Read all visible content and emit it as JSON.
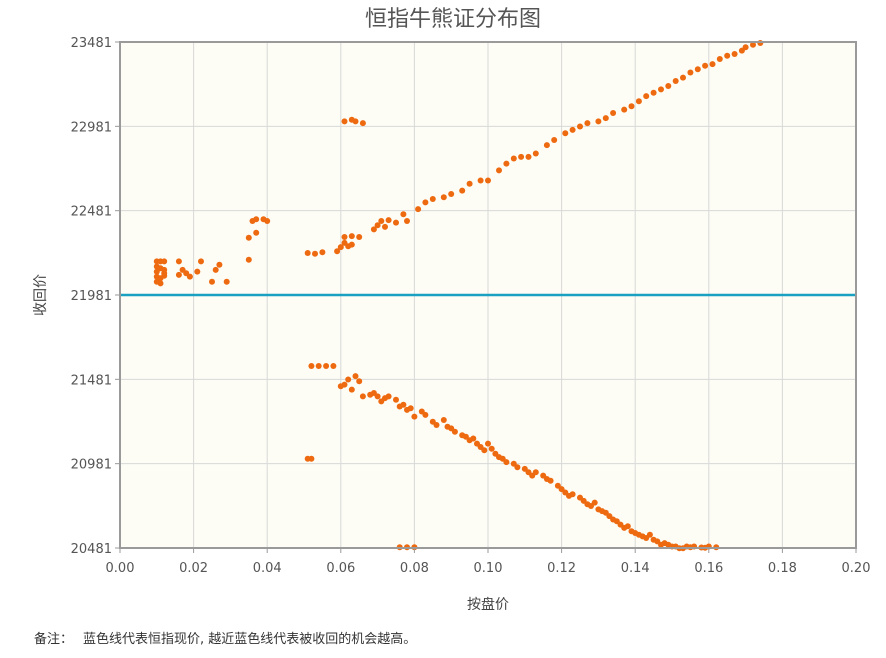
{
  "note": {
    "label": "备注：",
    "text": "蓝色线代表恒指现价, 越近蓝色线代表被收回的机会越高。"
  },
  "chart_data": {
    "type": "scatter",
    "title": "恒指牛熊证分布图",
    "xlabel": "按盘价",
    "ylabel": "收回价",
    "xlim": [
      0,
      0.2
    ],
    "ylim": [
      20481,
      23481
    ],
    "x_ticks": [
      "0.00",
      "0.02",
      "0.04",
      "0.06",
      "0.08",
      "0.10",
      "0.12",
      "0.14",
      "0.16",
      "0.18",
      "0.20"
    ],
    "y_ticks": [
      "20481",
      "20981",
      "21481",
      "21981",
      "22481",
      "22981",
      "23481"
    ],
    "grid": true,
    "colors": {
      "points": "#ee6a10",
      "reference_line": "#1aa0c0",
      "plot_bg": "#fdfdf6",
      "grid": "#d8d8d8",
      "frame": "#9a9a9a"
    },
    "reference_line": {
      "y": 21981
    },
    "series": [
      {
        "values": [
          [
            0.01,
            22180
          ],
          [
            0.011,
            22180
          ],
          [
            0.012,
            22180
          ],
          [
            0.01,
            22150
          ],
          [
            0.011,
            22140
          ],
          [
            0.012,
            22130
          ],
          [
            0.01,
            22120
          ],
          [
            0.012,
            22110
          ],
          [
            0.01,
            22090
          ],
          [
            0.011,
            22080
          ],
          [
            0.012,
            22095
          ],
          [
            0.01,
            22060
          ],
          [
            0.011,
            22050
          ],
          [
            0.016,
            22180
          ],
          [
            0.017,
            22130
          ],
          [
            0.016,
            22100
          ],
          [
            0.018,
            22110
          ],
          [
            0.019,
            22090
          ],
          [
            0.021,
            22120
          ],
          [
            0.022,
            22180
          ],
          [
            0.025,
            22060
          ],
          [
            0.026,
            22130
          ],
          [
            0.027,
            22160
          ],
          [
            0.029,
            22060
          ],
          [
            0.035,
            22190
          ],
          [
            0.035,
            22320
          ],
          [
            0.037,
            22350
          ],
          [
            0.036,
            22420
          ],
          [
            0.037,
            22430
          ],
          [
            0.039,
            22430
          ],
          [
            0.04,
            22420
          ],
          [
            0.051,
            22230
          ],
          [
            0.053,
            22225
          ],
          [
            0.055,
            22235
          ],
          [
            0.059,
            22240
          ],
          [
            0.06,
            22265
          ],
          [
            0.061,
            22290
          ],
          [
            0.062,
            22270
          ],
          [
            0.063,
            22280
          ],
          [
            0.061,
            22325
          ],
          [
            0.063,
            22330
          ],
          [
            0.065,
            22325
          ],
          [
            0.061,
            23010
          ],
          [
            0.063,
            23020
          ],
          [
            0.064,
            23010
          ],
          [
            0.066,
            23000
          ],
          [
            0.069,
            22370
          ],
          [
            0.07,
            22395
          ],
          [
            0.071,
            22420
          ],
          [
            0.072,
            22385
          ],
          [
            0.073,
            22425
          ],
          [
            0.075,
            22410
          ],
          [
            0.077,
            22460
          ],
          [
            0.078,
            22420
          ],
          [
            0.081,
            22490
          ],
          [
            0.083,
            22530
          ],
          [
            0.085,
            22550
          ],
          [
            0.088,
            22560
          ],
          [
            0.09,
            22580
          ],
          [
            0.093,
            22600
          ],
          [
            0.095,
            22640
          ],
          [
            0.098,
            22660
          ],
          [
            0.1,
            22660
          ],
          [
            0.103,
            22720
          ],
          [
            0.105,
            22760
          ],
          [
            0.107,
            22790
          ],
          [
            0.109,
            22800
          ],
          [
            0.111,
            22800
          ],
          [
            0.113,
            22820
          ],
          [
            0.116,
            22870
          ],
          [
            0.118,
            22900
          ],
          [
            0.121,
            22940
          ],
          [
            0.123,
            22960
          ],
          [
            0.125,
            22980
          ],
          [
            0.127,
            23000
          ],
          [
            0.13,
            23010
          ],
          [
            0.132,
            23030
          ],
          [
            0.134,
            23060
          ],
          [
            0.137,
            23080
          ],
          [
            0.139,
            23100
          ],
          [
            0.141,
            23130
          ],
          [
            0.143,
            23160
          ],
          [
            0.145,
            23180
          ],
          [
            0.147,
            23200
          ],
          [
            0.149,
            23220
          ],
          [
            0.151,
            23250
          ],
          [
            0.153,
            23270
          ],
          [
            0.155,
            23300
          ],
          [
            0.157,
            23320
          ],
          [
            0.159,
            23340
          ],
          [
            0.161,
            23350
          ],
          [
            0.163,
            23380
          ],
          [
            0.165,
            23400
          ],
          [
            0.167,
            23410
          ],
          [
            0.169,
            23430
          ],
          [
            0.17,
            23450
          ],
          [
            0.172,
            23465
          ],
          [
            0.174,
            23475
          ],
          [
            0.052,
            21560
          ],
          [
            0.054,
            21560
          ],
          [
            0.056,
            21560
          ],
          [
            0.058,
            21560
          ],
          [
            0.06,
            21440
          ],
          [
            0.061,
            21450
          ],
          [
            0.062,
            21480
          ],
          [
            0.063,
            21420
          ],
          [
            0.064,
            21500
          ],
          [
            0.065,
            21470
          ],
          [
            0.066,
            21380
          ],
          [
            0.068,
            21390
          ],
          [
            0.069,
            21400
          ],
          [
            0.07,
            21380
          ],
          [
            0.071,
            21350
          ],
          [
            0.072,
            21370
          ],
          [
            0.073,
            21380
          ],
          [
            0.075,
            21360
          ],
          [
            0.076,
            21320
          ],
          [
            0.077,
            21330
          ],
          [
            0.078,
            21300
          ],
          [
            0.079,
            21310
          ],
          [
            0.08,
            21260
          ],
          [
            0.082,
            21290
          ],
          [
            0.083,
            21270
          ],
          [
            0.085,
            21230
          ],
          [
            0.086,
            21210
          ],
          [
            0.088,
            21240
          ],
          [
            0.089,
            21200
          ],
          [
            0.09,
            21190
          ],
          [
            0.091,
            21170
          ],
          [
            0.093,
            21150
          ],
          [
            0.094,
            21140
          ],
          [
            0.095,
            21120
          ],
          [
            0.096,
            21130
          ],
          [
            0.097,
            21100
          ],
          [
            0.098,
            21080
          ],
          [
            0.099,
            21060
          ],
          [
            0.1,
            21100
          ],
          [
            0.101,
            21070
          ],
          [
            0.102,
            21040
          ],
          [
            0.103,
            21020
          ],
          [
            0.104,
            21010
          ],
          [
            0.105,
            20990
          ],
          [
            0.107,
            20980
          ],
          [
            0.108,
            20960
          ],
          [
            0.11,
            20950
          ],
          [
            0.111,
            20930
          ],
          [
            0.112,
            20910
          ],
          [
            0.113,
            20930
          ],
          [
            0.115,
            20910
          ],
          [
            0.116,
            20890
          ],
          [
            0.117,
            20880
          ],
          [
            0.119,
            20850
          ],
          [
            0.12,
            20830
          ],
          [
            0.121,
            20810
          ],
          [
            0.122,
            20790
          ],
          [
            0.123,
            20800
          ],
          [
            0.125,
            20780
          ],
          [
            0.126,
            20760
          ],
          [
            0.127,
            20740
          ],
          [
            0.128,
            20730
          ],
          [
            0.129,
            20750
          ],
          [
            0.13,
            20710
          ],
          [
            0.131,
            20700
          ],
          [
            0.132,
            20690
          ],
          [
            0.133,
            20670
          ],
          [
            0.134,
            20650
          ],
          [
            0.135,
            20640
          ],
          [
            0.136,
            20620
          ],
          [
            0.137,
            20600
          ],
          [
            0.138,
            20610
          ],
          [
            0.139,
            20580
          ],
          [
            0.14,
            20570
          ],
          [
            0.141,
            20560
          ],
          [
            0.142,
            20550
          ],
          [
            0.143,
            20540
          ],
          [
            0.144,
            20560
          ],
          [
            0.145,
            20530
          ],
          [
            0.146,
            20520
          ],
          [
            0.147,
            20500
          ],
          [
            0.148,
            20510
          ],
          [
            0.149,
            20500
          ],
          [
            0.15,
            20490
          ],
          [
            0.151,
            20490
          ],
          [
            0.152,
            20480
          ],
          [
            0.153,
            20480
          ],
          [
            0.154,
            20490
          ],
          [
            0.155,
            20485
          ],
          [
            0.156,
            20490
          ],
          [
            0.158,
            20484
          ],
          [
            0.159,
            20483
          ],
          [
            0.16,
            20490
          ],
          [
            0.162,
            20485
          ],
          [
            0.051,
            21010
          ],
          [
            0.052,
            21010
          ],
          [
            0.076,
            20485
          ],
          [
            0.078,
            20485
          ],
          [
            0.08,
            20485
          ]
        ]
      }
    ]
  }
}
